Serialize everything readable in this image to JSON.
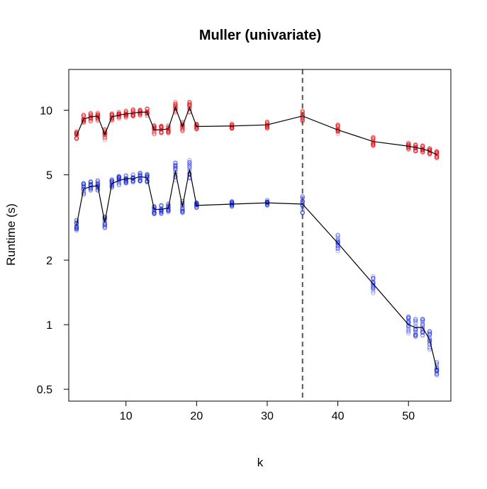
{
  "chart_data": {
    "type": "scatter",
    "title": "Muller (univariate)",
    "xlabel": "k",
    "ylabel": "Runtime (s)",
    "xlim": [
      1.9,
      56.0
    ],
    "ylim": [
      0.44,
      15.5
    ],
    "y_scale": "log",
    "x_ticks": [
      10,
      20,
      30,
      40,
      50
    ],
    "x_tick_labels": [
      "10",
      "20",
      "30",
      "40",
      "50"
    ],
    "y_ticks": [
      0.5,
      1,
      2,
      5,
      10
    ],
    "y_tick_labels": [
      "0.5",
      "1",
      "2",
      "5",
      "10"
    ],
    "grid": false,
    "legend": "none",
    "vertical_reference_line": {
      "x": 35,
      "style": "dashed",
      "color": "#555555"
    },
    "points_per_k": 20,
    "series": [
      {
        "color": "#e8000b",
        "x": [
          3,
          4,
          5,
          6,
          7,
          8,
          9,
          10,
          11,
          12,
          13,
          14,
          15,
          16,
          17,
          18,
          19,
          20,
          25,
          30,
          35,
          40,
          45,
          50,
          51,
          52,
          53,
          54
        ],
        "y": [
          7.6,
          9.1,
          9.3,
          9.4,
          7.7,
          9.3,
          9.5,
          9.6,
          9.7,
          9.8,
          9.8,
          8.1,
          8.1,
          8.2,
          10.3,
          8.4,
          10.3,
          8.4,
          8.45,
          8.55,
          9.4,
          8.1,
          7.15,
          6.8,
          6.7,
          6.6,
          6.45,
          6.2
        ],
        "spread": [
          0.05,
          0.05,
          0.05,
          0.05,
          0.06,
          0.04,
          0.04,
          0.04,
          0.04,
          0.04,
          0.04,
          0.05,
          0.05,
          0.05,
          0.06,
          0.05,
          0.06,
          0.03,
          0.03,
          0.04,
          0.06,
          0.06,
          0.05,
          0.04,
          0.04,
          0.04,
          0.04,
          0.04
        ]
      },
      {
        "color": "#0a1ee8",
        "x": [
          3,
          4,
          5,
          6,
          7,
          8,
          9,
          10,
          11,
          12,
          13,
          14,
          15,
          16,
          17,
          18,
          19,
          20,
          25,
          30,
          35,
          40,
          45,
          50,
          51,
          52,
          53,
          54
        ],
        "y": [
          2.9,
          4.3,
          4.4,
          4.45,
          3.0,
          4.55,
          4.7,
          4.8,
          4.8,
          4.9,
          4.85,
          3.45,
          3.45,
          3.5,
          5.2,
          3.55,
          5.3,
          3.6,
          3.65,
          3.7,
          3.65,
          2.4,
          1.55,
          1.0,
          0.97,
          0.97,
          0.85,
          0.62
        ],
        "spread": [
          0.07,
          0.06,
          0.06,
          0.06,
          0.07,
          0.05,
          0.05,
          0.05,
          0.05,
          0.05,
          0.05,
          0.05,
          0.05,
          0.05,
          0.1,
          0.07,
          0.1,
          0.03,
          0.03,
          0.03,
          0.1,
          0.1,
          0.1,
          0.1,
          0.1,
          0.1,
          0.12,
          0.08
        ]
      }
    ]
  }
}
